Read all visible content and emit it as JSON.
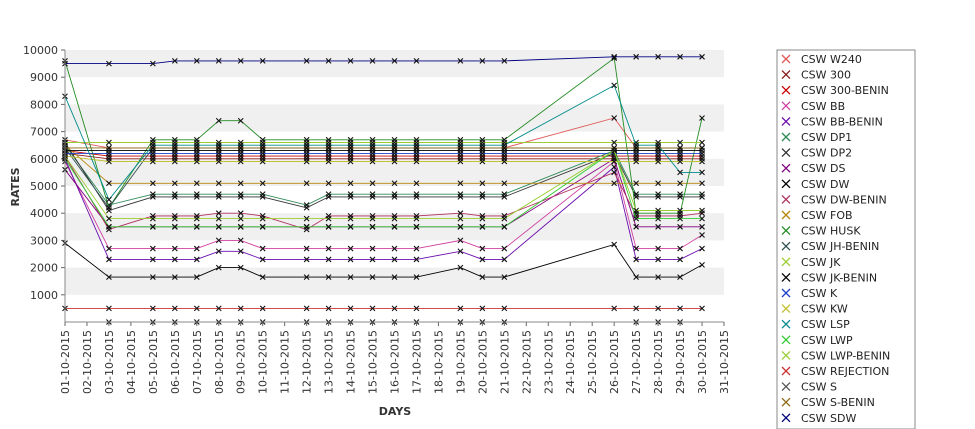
{
  "chart_data": {
    "type": "line",
    "xlabel": "DAYS",
    "ylabel": "RATES",
    "ylim": [
      0,
      10000
    ],
    "yticks": [
      1000,
      2000,
      3000,
      4000,
      5000,
      6000,
      7000,
      8000,
      9000,
      10000
    ],
    "categories": [
      "01-10-2015",
      "02-10-2015",
      "03-10-2015",
      "04-10-2015",
      "05-10-2015",
      "06-10-2015",
      "07-10-2015",
      "08-10-2015",
      "09-10-2015",
      "10-10-2015",
      "11-10-2015",
      "12-10-2015",
      "13-10-2015",
      "14-10-2015",
      "15-10-2015",
      "16-10-2015",
      "17-10-2015",
      "18-10-2015",
      "19-10-2015",
      "20-10-2015",
      "21-10-2015",
      "22-10-2015",
      "23-10-2015",
      "24-10-2015",
      "25-10-2015",
      "26-10-2015",
      "27-10-2015",
      "28-10-2015",
      "29-10-2015",
      "30-10-2015",
      "31-10-2015"
    ],
    "grid": "horizontal bands",
    "legend_position": "right",
    "series": [
      {
        "name": "CSW  W240",
        "color": "#e05a5a",
        "values": [
          6700,
          null,
          6400,
          null,
          6400,
          6400,
          6400,
          6400,
          6400,
          6400,
          null,
          6400,
          6400,
          6400,
          6400,
          6400,
          6400,
          null,
          6400,
          6400,
          6400,
          null,
          null,
          null,
          null,
          7500,
          6400,
          6400,
          6400,
          6400,
          null
        ]
      },
      {
        "name": "CSW 300",
        "color": "#8b1a1a",
        "values": [
          6200,
          null,
          6000,
          null,
          6000,
          6000,
          6000,
          6000,
          6000,
          6000,
          null,
          6000,
          6000,
          6000,
          6000,
          6000,
          6000,
          null,
          6000,
          6000,
          6000,
          null,
          null,
          null,
          null,
          6000,
          6000,
          6000,
          6000,
          6000,
          null
        ]
      },
      {
        "name": "CSW 300-BENIN",
        "color": "#cc0000",
        "values": [
          6300,
          null,
          6100,
          null,
          6100,
          6100,
          6100,
          6100,
          6100,
          6100,
          null,
          6100,
          6100,
          6100,
          6100,
          6100,
          6100,
          null,
          6100,
          6100,
          6100,
          null,
          null,
          null,
          null,
          6100,
          6100,
          6100,
          6100,
          6100,
          null
        ]
      },
      {
        "name": "CSW BB",
        "color": "#d040a0",
        "values": [
          5900,
          null,
          2700,
          null,
          2700,
          2700,
          2700,
          3000,
          3000,
          2700,
          null,
          2700,
          2700,
          2700,
          2700,
          2700,
          2700,
          null,
          3000,
          2700,
          2700,
          null,
          null,
          null,
          null,
          5900,
          2700,
          2700,
          2700,
          3200,
          null
        ]
      },
      {
        "name": "CSW BB-BENIN",
        "color": "#6a0dad",
        "values": [
          6000,
          null,
          2300,
          null,
          2300,
          2300,
          2300,
          2600,
          2600,
          2300,
          null,
          2300,
          2300,
          2300,
          2300,
          2300,
          2300,
          null,
          2600,
          2300,
          2300,
          null,
          null,
          null,
          null,
          5700,
          2300,
          2300,
          2300,
          2700,
          null
        ]
      },
      {
        "name": "CSW DP1",
        "color": "#2e8b57",
        "values": [
          6500,
          null,
          4300,
          null,
          4700,
          4700,
          4700,
          4700,
          4700,
          4700,
          null,
          4300,
          4700,
          4700,
          4700,
          4700,
          4700,
          null,
          4700,
          4700,
          4700,
          null,
          null,
          null,
          null,
          6300,
          4700,
          4700,
          4700,
          4700,
          null
        ]
      },
      {
        "name": "CSW DP2",
        "color": "#333333",
        "values": [
          6600,
          null,
          4100,
          null,
          4600,
          4600,
          4600,
          4600,
          4600,
          4600,
          null,
          4200,
          4600,
          4600,
          4600,
          4600,
          4600,
          null,
          4600,
          4600,
          4600,
          null,
          null,
          null,
          null,
          6200,
          4600,
          4600,
          4600,
          4600,
          null
        ]
      },
      {
        "name": "CSW DS",
        "color": "#800080",
        "values": [
          5600,
          null,
          3500,
          null,
          3500,
          3500,
          3500,
          3500,
          3500,
          3500,
          null,
          3500,
          3500,
          3500,
          3500,
          3500,
          3500,
          null,
          3500,
          3500,
          3500,
          null,
          null,
          null,
          null,
          6000,
          3500,
          3500,
          3500,
          3500,
          null
        ]
      },
      {
        "name": "CSW DW",
        "color": "#000000",
        "values": [
          2900,
          null,
          1650,
          null,
          1650,
          1650,
          1650,
          2000,
          2000,
          1650,
          null,
          1650,
          1650,
          1650,
          1650,
          1650,
          1650,
          null,
          2000,
          1650,
          1650,
          null,
          null,
          null,
          null,
          2850,
          1650,
          1650,
          1650,
          2100,
          null
        ]
      },
      {
        "name": "CSW DW-BENIN",
        "color": "#b03060",
        "values": [
          6100,
          null,
          3400,
          null,
          3900,
          3900,
          3900,
          4000,
          4000,
          3900,
          null,
          3400,
          3900,
          3900,
          3900,
          3900,
          3900,
          null,
          4000,
          3900,
          3900,
          null,
          null,
          null,
          null,
          5500,
          3900,
          3900,
          3900,
          4000,
          null
        ]
      },
      {
        "name": "CSW FOB",
        "color": "#b8860b",
        "values": [
          6500,
          null,
          5100,
          null,
          5100,
          5100,
          5100,
          5100,
          5100,
          5100,
          null,
          5100,
          5100,
          5100,
          5100,
          5100,
          5100,
          null,
          5100,
          5100,
          5100,
          null,
          null,
          null,
          null,
          5100,
          5100,
          5100,
          5100,
          5100,
          null
        ]
      },
      {
        "name": "CSW HUSK",
        "color": "#228b22",
        "values": [
          9600,
          null,
          4200,
          null,
          6700,
          6700,
          6700,
          7400,
          7400,
          6700,
          null,
          6700,
          6700,
          6700,
          6700,
          6700,
          6700,
          null,
          6700,
          6700,
          6700,
          null,
          null,
          null,
          null,
          9700,
          4000,
          4000,
          4000,
          7500,
          null
        ]
      },
      {
        "name": "CSW JH-BENIN",
        "color": "#2f4f4f",
        "values": [
          6400,
          null,
          4200,
          null,
          6400,
          6400,
          6400,
          6400,
          6400,
          6400,
          null,
          6400,
          6400,
          6400,
          6400,
          6400,
          6400,
          null,
          6400,
          6400,
          6400,
          null,
          null,
          null,
          null,
          6400,
          6400,
          6400,
          6400,
          6400,
          null
        ]
      },
      {
        "name": "CSW JK",
        "color": "#9acd32",
        "values": [
          6600,
          null,
          6600,
          null,
          6600,
          6600,
          6600,
          6600,
          6600,
          6600,
          null,
          6600,
          6600,
          6600,
          6600,
          6600,
          6600,
          null,
          6600,
          6600,
          6600,
          null,
          null,
          null,
          null,
          6600,
          6600,
          6600,
          6600,
          6600,
          null
        ]
      },
      {
        "name": "CSW JK-BENIN",
        "color": "#000000",
        "values": [
          6300,
          null,
          6300,
          null,
          6300,
          6300,
          6300,
          6300,
          6300,
          6300,
          null,
          6300,
          6300,
          6300,
          6300,
          6300,
          6300,
          null,
          6300,
          6300,
          6300,
          null,
          null,
          null,
          null,
          6300,
          6300,
          6300,
          6300,
          6300,
          null
        ]
      },
      {
        "name": "CSW K",
        "color": "#1e40c8",
        "values": [
          6200,
          null,
          6200,
          null,
          6200,
          6200,
          6200,
          6200,
          6200,
          6200,
          null,
          6200,
          6200,
          6200,
          6200,
          6200,
          6200,
          null,
          6200,
          6200,
          6200,
          null,
          null,
          null,
          null,
          6200,
          6200,
          6200,
          6200,
          6200,
          null
        ]
      },
      {
        "name": "CSW KW",
        "color": "#c0c030",
        "values": [
          6100,
          null,
          5900,
          null,
          5900,
          5900,
          5900,
          5900,
          5900,
          5900,
          null,
          5900,
          5900,
          5900,
          5900,
          5900,
          5900,
          null,
          5900,
          5900,
          5900,
          null,
          null,
          null,
          null,
          5900,
          5900,
          5900,
          5900,
          5900,
          null
        ]
      },
      {
        "name": "CSW LSP",
        "color": "#008b8b",
        "values": [
          8300,
          null,
          4500,
          null,
          6500,
          6500,
          6500,
          6500,
          6500,
          6500,
          null,
          6500,
          6500,
          6500,
          6500,
          6500,
          6500,
          null,
          6500,
          6500,
          6500,
          null,
          null,
          null,
          null,
          8700,
          6500,
          6500,
          5500,
          5500,
          null
        ]
      },
      {
        "name": "CSW LWP",
        "color": "#32cd32",
        "values": [
          6000,
          null,
          3500,
          null,
          3500,
          3500,
          3500,
          3500,
          3500,
          3500,
          null,
          3500,
          3500,
          3500,
          3500,
          3500,
          3500,
          null,
          3500,
          3500,
          3500,
          null,
          null,
          null,
          null,
          6300,
          3800,
          3800,
          3800,
          3800,
          null
        ]
      },
      {
        "name": "CSW LWP-BENIN",
        "color": "#9acd32",
        "values": [
          6100,
          null,
          3800,
          null,
          3800,
          3800,
          3800,
          3800,
          3800,
          3800,
          null,
          3800,
          3800,
          3800,
          3800,
          3800,
          3800,
          null,
          3800,
          3800,
          3800,
          null,
          null,
          null,
          null,
          6300,
          4100,
          4100,
          4100,
          4100,
          null
        ]
      },
      {
        "name": "CSW REJECTION",
        "color": "#cc3333",
        "values": [
          500,
          null,
          500,
          null,
          500,
          500,
          500,
          500,
          500,
          500,
          null,
          500,
          500,
          500,
          500,
          500,
          500,
          null,
          500,
          500,
          500,
          null,
          null,
          null,
          null,
          500,
          500,
          500,
          500,
          500,
          null
        ]
      },
      {
        "name": "CSW S",
        "color": "#555555",
        "values": [
          null,
          null,
          0,
          null,
          0,
          0,
          0,
          0,
          0,
          0,
          null,
          0,
          0,
          0,
          0,
          0,
          0,
          null,
          0,
          0,
          0,
          null,
          null,
          null,
          null,
          null,
          0,
          0,
          0,
          null,
          null
        ]
      },
      {
        "name": "CSW S-BENIN",
        "color": "#8b6914",
        "values": [
          6400,
          null,
          6400,
          null,
          6400,
          6400,
          6400,
          6400,
          6400,
          6400,
          null,
          6400,
          6400,
          6400,
          6400,
          6400,
          6400,
          null,
          6400,
          6400,
          6400,
          null,
          null,
          null,
          null,
          6400,
          6400,
          6400,
          6400,
          6400,
          null
        ]
      },
      {
        "name": "CSW SDW",
        "color": "#000080",
        "values": [
          9500,
          null,
          9500,
          null,
          9500,
          9600,
          9600,
          9600,
          9600,
          9600,
          null,
          9600,
          9600,
          9600,
          9600,
          9600,
          9600,
          null,
          9600,
          9600,
          9600,
          null,
          null,
          null,
          null,
          9750,
          9750,
          9750,
          9750,
          9750,
          null
        ]
      }
    ]
  }
}
